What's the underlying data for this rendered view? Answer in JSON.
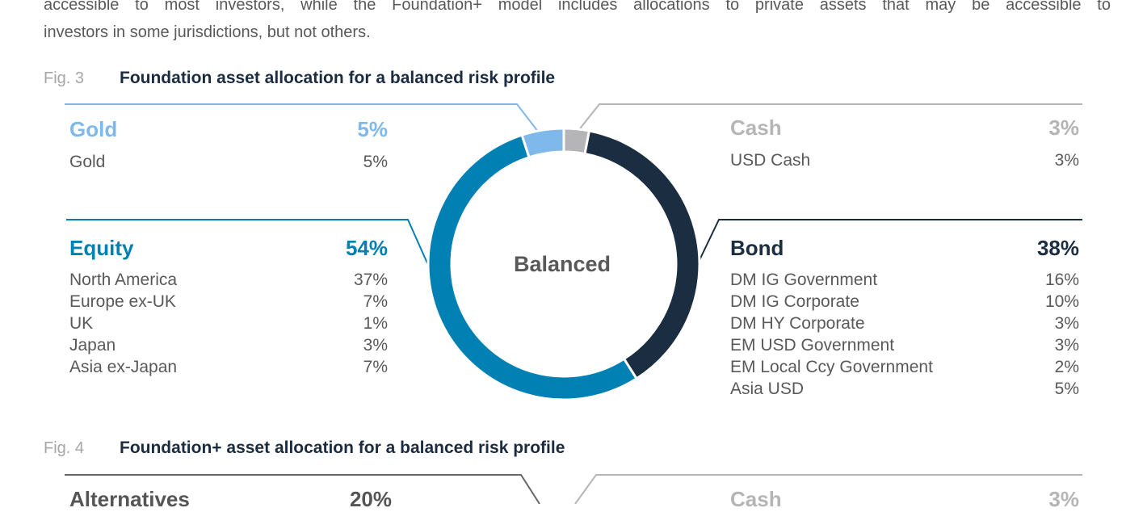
{
  "intro": {
    "line1": "accessible to most investors, while the Foundation+ model includes allocations to private assets that may be accessible to",
    "line2": "investors in some jurisdictions, but not others."
  },
  "fig3": {
    "num": "Fig. 3",
    "title": "Foundation asset allocation for a balanced risk profile"
  },
  "fig4": {
    "num": "Fig. 4",
    "title": "Foundation+ asset allocation for a balanced risk profile",
    "left_category": "Alternatives",
    "left_pct": "20%",
    "right_category": "Cash",
    "right_pct": "3%"
  },
  "colors": {
    "cash": "#b5b5b7",
    "bond": "#1b2d40",
    "equity": "#0080b3",
    "gold": "#7fb9ec",
    "alternatives": "#666666"
  },
  "chart_data": {
    "type": "pie",
    "donut": true,
    "center_label": "Balanced",
    "series": [
      {
        "name": "Cash",
        "value": 3,
        "label": "3%",
        "items": [
          {
            "name": "USD Cash",
            "value": "3%"
          }
        ]
      },
      {
        "name": "Bond",
        "value": 38,
        "label": "38%",
        "items": [
          {
            "name": "DM IG Government",
            "value": "16%"
          },
          {
            "name": "DM IG Corporate",
            "value": "10%"
          },
          {
            "name": "DM HY Corporate",
            "value": "3%"
          },
          {
            "name": "EM USD Government",
            "value": "3%"
          },
          {
            "name": "EM Local Ccy Government",
            "value": "2%"
          },
          {
            "name": "Asia USD",
            "value": "5%"
          }
        ]
      },
      {
        "name": "Equity",
        "value": 54,
        "label": "54%",
        "items": [
          {
            "name": "North America",
            "value": "37%"
          },
          {
            "name": "Europe ex-UK",
            "value": "7%"
          },
          {
            "name": "UK",
            "value": "1%"
          },
          {
            "name": "Japan",
            "value": "3%"
          },
          {
            "name": "Asia ex-Japan",
            "value": "7%"
          }
        ]
      },
      {
        "name": "Gold",
        "value": 5,
        "label": "5%",
        "items": [
          {
            "name": "Gold",
            "value": "5%"
          }
        ]
      }
    ]
  }
}
